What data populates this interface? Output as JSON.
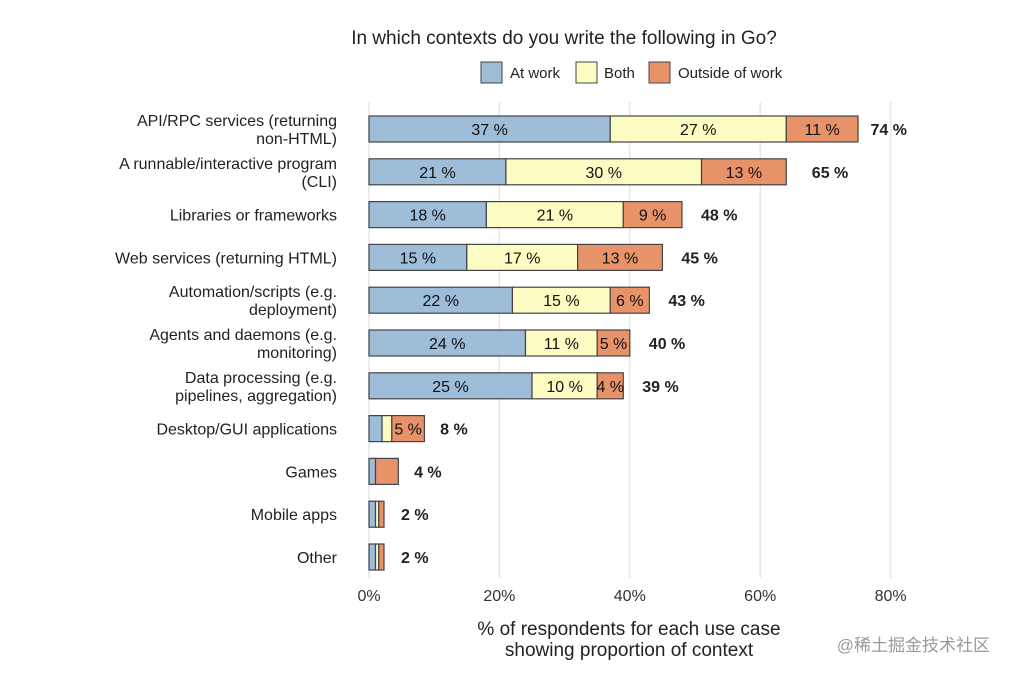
{
  "colors": {
    "at_work": "#9dbdd9",
    "both": "#fdfcc3",
    "outside_of_work": "#e8926a",
    "grid": "#e6e6e6",
    "bar_border": "#444444"
  },
  "watermark": "@稀土掘金技术社区",
  "chart_data": {
    "type": "bar",
    "orientation": "horizontal",
    "stacked": true,
    "title": "In which contexts do you write the following in Go?",
    "xlabel_lines": [
      "% of respondents for each use case",
      "showing proportion of context"
    ],
    "ylabel": "",
    "xlim": [
      0,
      80
    ],
    "xticks": [
      0,
      20,
      40,
      60,
      80
    ],
    "xtick_labels": [
      "0%",
      "20%",
      "40%",
      "60%",
      "80%"
    ],
    "grid": "vertical",
    "legend": {
      "placement": "top",
      "entries": [
        "At work",
        "Both",
        "Outside of work"
      ]
    },
    "categories": [
      [
        "API/RPC services (returning",
        "non-HTML)"
      ],
      [
        "A runnable/interactive program",
        "(CLI)"
      ],
      [
        "Libraries or frameworks"
      ],
      [
        "Web services (returning HTML)"
      ],
      [
        "Automation/scripts (e.g.",
        "deployment)"
      ],
      [
        "Agents and daemons (e.g.",
        "monitoring)"
      ],
      [
        "Data processing (e.g.",
        "pipelines, aggregation)"
      ],
      [
        "Desktop/GUI applications"
      ],
      [
        "Games"
      ],
      [
        "Mobile apps"
      ],
      [
        "Other"
      ]
    ],
    "series": [
      {
        "name": "At work",
        "values": [
          37,
          21,
          18,
          15,
          22,
          24,
          25,
          2,
          1,
          1,
          1
        ],
        "labels": [
          "37 %",
          "21 %",
          "18 %",
          "15 %",
          "22 %",
          "24 %",
          "25 %",
          "",
          "",
          "",
          ""
        ]
      },
      {
        "name": "Both",
        "values": [
          27,
          30,
          21,
          17,
          15,
          11,
          10,
          1.5,
          0,
          0.5,
          0.5
        ],
        "labels": [
          "27 %",
          "30 %",
          "21 %",
          "17 %",
          "15 %",
          "11 %",
          "10 %",
          "",
          "",
          "",
          ""
        ]
      },
      {
        "name": "Outside of work",
        "values": [
          11,
          13,
          9,
          13,
          6,
          5,
          4,
          5,
          3.5,
          0.8,
          0.8
        ],
        "labels": [
          "11 %",
          "13 %",
          "9 %",
          "13 %",
          "6 %",
          "5 %",
          "4 %",
          "5 %",
          "",
          "",
          ""
        ]
      }
    ],
    "totals": [
      74,
      65,
      48,
      45,
      43,
      40,
      39,
      8,
      4,
      2,
      2
    ],
    "total_labels": [
      "74 %",
      "65 %",
      "48 %",
      "45 %",
      "43 %",
      "40 %",
      "39 %",
      "8 %",
      "4 %",
      "2 %",
      "2 %"
    ]
  }
}
